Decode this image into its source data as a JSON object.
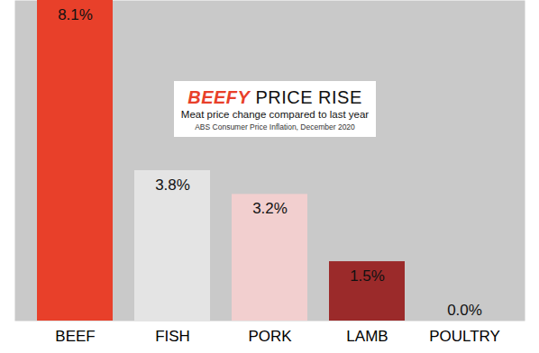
{
  "chart_data": {
    "type": "bar",
    "title": "BEEFY PRICE RISE",
    "subtitle": "Meat price change compared to last year",
    "caption": "ABS Consumer Price Inflation, December 2020",
    "categories": [
      "BEEF",
      "FISH",
      "PORK",
      "LAMB",
      "POULTRY"
    ],
    "values": [
      8.1,
      3.8,
      3.2,
      1.5,
      0.0
    ],
    "value_labels": [
      "8.1%",
      "3.8%",
      "3.2%",
      "1.5%",
      "0.0%"
    ],
    "colors": [
      "#e8402a",
      "#e4e4e4",
      "#f2cfcf",
      "#9b2a2a",
      "#f0f0f0"
    ],
    "ylim": [
      0,
      8.1
    ],
    "data_labels": true,
    "tick_labels": "x",
    "grid": false
  }
}
